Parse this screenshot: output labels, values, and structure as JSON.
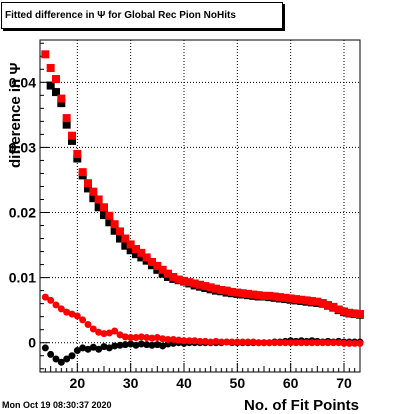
{
  "chart_data": {
    "type": "scatter",
    "title": "Fitted difference in  Ψ  for Global Rec Pion NoHits",
    "xlabel": "No. of Fit Points",
    "ylabel": "difference in  Ψ",
    "xlim": [
      13,
      73
    ],
    "ylim": [
      -0.0045,
      0.0465
    ],
    "x_ticks": [
      20,
      30,
      40,
      50,
      60,
      70
    ],
    "x_tick_labels": [
      "20",
      "30",
      "40",
      "50",
      "60",
      "70"
    ],
    "y_ticks": [
      0,
      0.01,
      0.02,
      0.03,
      0.04
    ],
    "y_tick_labels": [
      "0",
      "0.01",
      "0.02",
      "0.03",
      "0.04"
    ],
    "grid": true,
    "legend": "none",
    "series": [
      {
        "color": "#000000",
        "marker": "square",
        "x": [
          15,
          16,
          17,
          18,
          19,
          20,
          21,
          22,
          23,
          24,
          25,
          26,
          27,
          28,
          29,
          30,
          31,
          32,
          33,
          34,
          35,
          36,
          37,
          38,
          39,
          40,
          41,
          42,
          43,
          44,
          45,
          46,
          47,
          48,
          49,
          50,
          51,
          52,
          53,
          54,
          55,
          56,
          57,
          58,
          59,
          60,
          61,
          62,
          63,
          64,
          65,
          66,
          67,
          68,
          69,
          70,
          71,
          72,
          73
        ],
        "y": [
          0.0395,
          0.0385,
          0.0368,
          0.0335,
          0.031,
          0.0283,
          0.0257,
          0.0237,
          0.0222,
          0.0208,
          0.0196,
          0.0185,
          0.0172,
          0.016,
          0.0149,
          0.0142,
          0.0136,
          0.0131,
          0.0126,
          0.0119,
          0.0112,
          0.0106,
          0.0101,
          0.0098,
          0.0096,
          0.0094,
          0.0091,
          0.0088,
          0.0086,
          0.0084,
          0.0082,
          0.008,
          0.0079,
          0.0077,
          0.0076,
          0.0075,
          0.0074,
          0.0073,
          0.0072,
          0.0071,
          0.0071,
          0.007,
          0.0069,
          0.0068,
          0.0067,
          0.0066,
          0.0065,
          0.0064,
          0.0063,
          0.0062,
          0.0061,
          0.006,
          0.0057,
          0.0054,
          0.005,
          0.0047,
          0.0045,
          0.0044,
          0.0043
        ]
      },
      {
        "color": "#ff0000",
        "marker": "square",
        "x": [
          14,
          15,
          16,
          17,
          18,
          19,
          20,
          21,
          22,
          23,
          24,
          25,
          26,
          27,
          28,
          29,
          30,
          31,
          32,
          33,
          34,
          35,
          36,
          37,
          38,
          39,
          40,
          41,
          42,
          43,
          44,
          45,
          46,
          47,
          48,
          49,
          50,
          51,
          52,
          53,
          54,
          55,
          56,
          57,
          58,
          59,
          60,
          61,
          62,
          63,
          64,
          65,
          66,
          67,
          68,
          69,
          70,
          71,
          72,
          73
        ],
        "y": [
          0.0443,
          0.0422,
          0.0405,
          0.0375,
          0.0345,
          0.0318,
          0.029,
          0.0262,
          0.0245,
          0.0232,
          0.022,
          0.0208,
          0.0195,
          0.0182,
          0.0171,
          0.016,
          0.0151,
          0.0144,
          0.0138,
          0.0131,
          0.0124,
          0.0118,
          0.0112,
          0.0106,
          0.0101,
          0.0097,
          0.0095,
          0.0093,
          0.0091,
          0.0089,
          0.0087,
          0.0085,
          0.0083,
          0.0081,
          0.008,
          0.0078,
          0.0077,
          0.0076,
          0.0075,
          0.0074,
          0.0073,
          0.0072,
          0.0072,
          0.0071,
          0.007,
          0.0069,
          0.0068,
          0.0067,
          0.0066,
          0.0065,
          0.0064,
          0.0063,
          0.0061,
          0.0058,
          0.0055,
          0.0051,
          0.0048,
          0.0046,
          0.0045,
          0.0044
        ]
      },
      {
        "color": "#000000",
        "marker": "circle",
        "x": [
          14,
          15,
          16,
          17,
          18,
          19,
          20,
          21,
          22,
          23,
          24,
          25,
          26,
          27,
          28,
          29,
          30,
          31,
          32,
          33,
          34,
          35,
          36,
          37,
          38,
          39,
          40,
          41,
          42,
          43,
          44,
          45,
          46,
          47,
          48,
          49,
          50,
          51,
          52,
          53,
          54,
          55,
          56,
          57,
          58,
          59,
          60,
          61,
          62,
          63,
          64,
          65,
          66,
          67,
          68,
          69,
          70,
          71,
          72,
          73
        ],
        "y": [
          -0.0008,
          -0.0018,
          -0.0025,
          -0.003,
          -0.0025,
          -0.002,
          -0.0012,
          -0.0008,
          -0.001,
          -0.0007,
          -0.001,
          -0.0006,
          -0.0008,
          -0.0005,
          -0.0004,
          -0.0003,
          -0.0002,
          -0.0004,
          -0.0002,
          -0.0003,
          -0.0004,
          -0.0003,
          -0.0005,
          -0.0002,
          -0.0001,
          0,
          -0.0001,
          0,
          0,
          0,
          0,
          0,
          0,
          0,
          0.0001,
          0,
          0,
          0,
          0,
          0,
          0,
          0,
          0,
          0.0001,
          0.0001,
          0.0002,
          0.0003,
          0.0002,
          0.0003,
          0.0002,
          0.0003,
          0.0002,
          0.0001,
          0.0002,
          0.0001,
          0.0002,
          0.0001,
          0.0001,
          0.0001,
          0.0001
        ]
      },
      {
        "color": "#ff0000",
        "marker": "circle",
        "x": [
          14,
          15,
          16,
          17,
          18,
          19,
          20,
          21,
          22,
          23,
          24,
          25,
          26,
          27,
          28,
          29,
          30,
          31,
          32,
          33,
          34,
          35,
          36,
          37,
          38,
          39,
          40,
          41,
          42,
          43,
          44,
          45,
          46,
          47,
          48,
          49,
          50,
          51,
          52,
          53,
          54,
          55,
          56,
          57,
          58,
          59,
          60,
          61,
          62,
          63,
          64,
          65,
          66,
          67,
          68,
          69,
          70,
          71,
          72,
          73
        ],
        "y": [
          0.007,
          0.0065,
          0.0058,
          0.0052,
          0.0047,
          0.0044,
          0.0041,
          0.0035,
          0.0028,
          0.0021,
          0.0016,
          0.0014,
          0.0015,
          0.0018,
          0.0012,
          0.0009,
          0.0008,
          0.0008,
          0.0009,
          0.0008,
          0.0007,
          0.0008,
          0.0006,
          0.0005,
          0.0005,
          0.0004,
          0.0003,
          0.0003,
          0.0003,
          0.0002,
          0.0002,
          0.0001,
          0.0002,
          0.0001,
          0.0001,
          0.0001,
          0.0001,
          0.0001,
          0.0001,
          0.0001,
          0,
          0,
          0,
          0,
          0,
          0,
          0,
          0,
          0,
          0,
          0,
          0,
          0,
          0,
          0,
          0,
          -0.0001,
          -0.0001,
          -0.0001,
          -0.0001
        ]
      }
    ]
  },
  "page": {
    "title": "Fitted difference in  Ψ  for Global Rec Pion NoHits",
    "timestamp": "Mon Oct 19 08:30:37 2020"
  }
}
